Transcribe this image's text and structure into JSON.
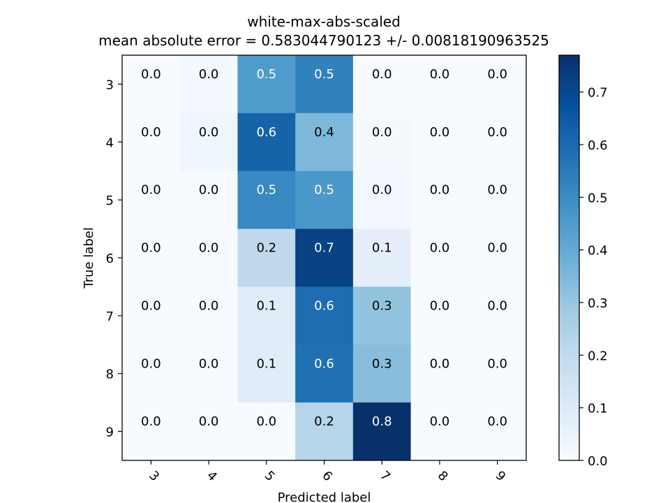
{
  "chart_data": {
    "type": "heatmap",
    "title": "white-max-abs-scaled",
    "subtitle": "mean absolute error = 0.583044790123 +/- 0.00818190963525",
    "xlabel": "Predicted label",
    "ylabel": "True label",
    "x_categories": [
      "3",
      "4",
      "5",
      "6",
      "7",
      "8",
      "9"
    ],
    "y_categories": [
      "3",
      "4",
      "5",
      "6",
      "7",
      "8",
      "9"
    ],
    "values": [
      [
        0.0,
        0.02,
        0.45,
        0.53,
        0.0,
        0.0,
        0.0
      ],
      [
        0.0,
        0.03,
        0.62,
        0.35,
        0.01,
        0.0,
        0.0
      ],
      [
        0.0,
        0.0,
        0.51,
        0.46,
        0.02,
        0.0,
        0.0
      ],
      [
        0.0,
        0.0,
        0.21,
        0.72,
        0.07,
        0.0,
        0.0
      ],
      [
        0.0,
        0.0,
        0.09,
        0.59,
        0.31,
        0.0,
        0.0
      ],
      [
        0.0,
        0.0,
        0.09,
        0.58,
        0.33,
        0.0,
        0.0
      ],
      [
        0.0,
        0.0,
        0.0,
        0.23,
        0.77,
        0.0,
        0.0
      ]
    ],
    "labels": [
      [
        "0.0",
        "0.0",
        "0.5",
        "0.5",
        "0.0",
        "0.0",
        "0.0"
      ],
      [
        "0.0",
        "0.0",
        "0.6",
        "0.4",
        "0.0",
        "0.0",
        "0.0"
      ],
      [
        "0.0",
        "0.0",
        "0.5",
        "0.5",
        "0.0",
        "0.0",
        "0.0"
      ],
      [
        "0.0",
        "0.0",
        "0.2",
        "0.7",
        "0.1",
        "0.0",
        "0.0"
      ],
      [
        "0.0",
        "0.0",
        "0.1",
        "0.6",
        "0.3",
        "0.0",
        "0.0"
      ],
      [
        "0.0",
        "0.0",
        "0.1",
        "0.6",
        "0.3",
        "0.0",
        "0.0"
      ],
      [
        "0.0",
        "0.0",
        "0.0",
        "0.2",
        "0.8",
        "0.0",
        "0.0"
      ]
    ],
    "colormap": "Blues",
    "colorbar": {
      "range": [
        0,
        0.77
      ],
      "ticks": [
        0.0,
        0.1,
        0.2,
        0.3,
        0.4,
        0.5,
        0.6,
        0.7
      ],
      "tick_labels": [
        "0.0",
        "0.1",
        "0.2",
        "0.3",
        "0.4",
        "0.5",
        "0.6",
        "0.7"
      ]
    },
    "grid": false,
    "text_color_light": "#ffffff",
    "text_color_dark": "#000000"
  }
}
